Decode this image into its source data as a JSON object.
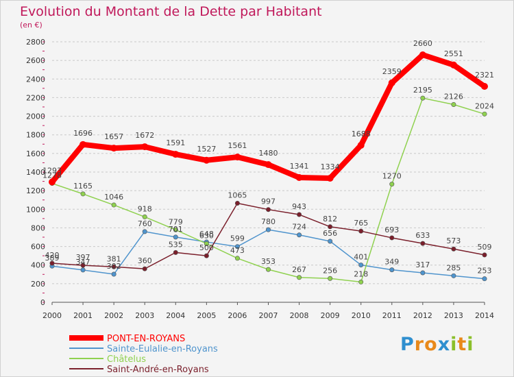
{
  "title": "Evolution du Montant de la Dette par Habitant",
  "subtitle": "(en €)",
  "brand": {
    "text": "Proxiti",
    "letters": [
      {
        "ch": "P",
        "color": "#2f8fcf"
      },
      {
        "ch": "r",
        "color": "#e8891a"
      },
      {
        "ch": "o",
        "color": "#e8891a"
      },
      {
        "ch": "x",
        "color": "#2f8fcf"
      },
      {
        "ch": "i",
        "color": "#8bbf2a"
      },
      {
        "ch": "t",
        "color": "#e8891a"
      },
      {
        "ch": "i",
        "color": "#8bbf2a"
      }
    ]
  },
  "chart_data": {
    "type": "line",
    "title": "Evolution du Montant de la Dette par Habitant",
    "subtitle": "(en €)",
    "xlabel": "",
    "ylabel": "",
    "x": [
      "2000",
      "2001",
      "2002",
      "2003",
      "2004",
      "2005",
      "2006",
      "2007",
      "2008",
      "2009",
      "2010",
      "2011",
      "2012",
      "2013",
      "2014"
    ],
    "ylim": [
      0,
      2800
    ],
    "yticks": [
      0,
      200,
      400,
      600,
      800,
      1000,
      1200,
      1400,
      1600,
      1800,
      2000,
      2200,
      2400,
      2600,
      2800
    ],
    "grid": "horizontal-dashed",
    "legend": "bottom-left",
    "series": [
      {
        "name": "PONT-EN-ROYANS",
        "color": "#ff0000",
        "values": [
          1293,
          1696,
          1657,
          1672,
          1591,
          1527,
          1561,
          1480,
          1341,
          1334,
          1688,
          2359,
          2660,
          2551,
          2321
        ],
        "labels": [
          "1293",
          "1696",
          "1657",
          "1672",
          "1591",
          "1527",
          "1561",
          "1480",
          "1341",
          "1334",
          "1688",
          "2359",
          "2660",
          "2551",
          "2321"
        ]
      },
      {
        "name": "Sainte-Eulalie-en-Royans",
        "color": "#4f94cd",
        "values": [
          389,
          347,
          302,
          760,
          701,
          648,
          599,
          780,
          724,
          656,
          401,
          349,
          317,
          285,
          253
        ],
        "labels": [
          "389",
          "347",
          "302",
          "760",
          "701",
          "648",
          "599",
          "780",
          "724",
          "656",
          "401",
          "349",
          "317",
          "285",
          "253"
        ]
      },
      {
        "name": "Châtelus",
        "color": "#8fd14f",
        "values": [
          1278,
          1165,
          1046,
          918,
          779,
          630,
          473,
          353,
          267,
          256,
          218,
          1270,
          2195,
          2126,
          2024
        ],
        "labels": [
          "1278",
          "1165",
          "1046",
          "918",
          "779",
          "630",
          "473",
          "353",
          "267",
          "256",
          "218",
          "1270",
          "2195",
          "2126",
          "2024"
        ]
      },
      {
        "name": "Saint-André-en-Royans",
        "color": "#7a1f2b",
        "values": [
          420,
          397,
          381,
          360,
          535,
          500,
          1065,
          997,
          943,
          812,
          765,
          693,
          633,
          573,
          509
        ],
        "labels": [
          "420",
          "397",
          "381",
          "360",
          "535",
          "500",
          "1065",
          "997",
          "943",
          "812",
          "765",
          "693",
          "633",
          "573",
          "509"
        ]
      }
    ]
  }
}
